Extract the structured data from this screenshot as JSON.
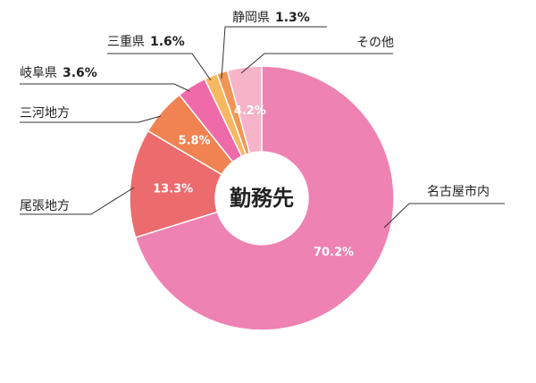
{
  "chart_data": {
    "type": "pie",
    "title": "",
    "center_label": "勤務先",
    "order": "clockwise-from-top",
    "slices": [
      {
        "label": "名古屋市内",
        "value": 70.2,
        "color": "#ee82b2",
        "value_text": "70.2%"
      },
      {
        "label": "尾張地方",
        "value": 13.3,
        "color": "#ec6b6d",
        "value_text": "13.3%"
      },
      {
        "label": "三河地方",
        "value": 5.8,
        "color": "#f08351",
        "value_text": "5.8%"
      },
      {
        "label": "岐阜県",
        "value": 3.6,
        "color": "#ee6aa8",
        "value_text": "3.6%"
      },
      {
        "label": "三重県",
        "value": 1.6,
        "color": "#f6b860",
        "value_text": "1.6%"
      },
      {
        "label": "静岡県",
        "value": 1.3,
        "color": "#f19654",
        "value_text": "1.3%"
      },
      {
        "label": "その他",
        "value": 4.2,
        "color": "#f6b4c9",
        "value_text": "4.2%"
      }
    ]
  }
}
